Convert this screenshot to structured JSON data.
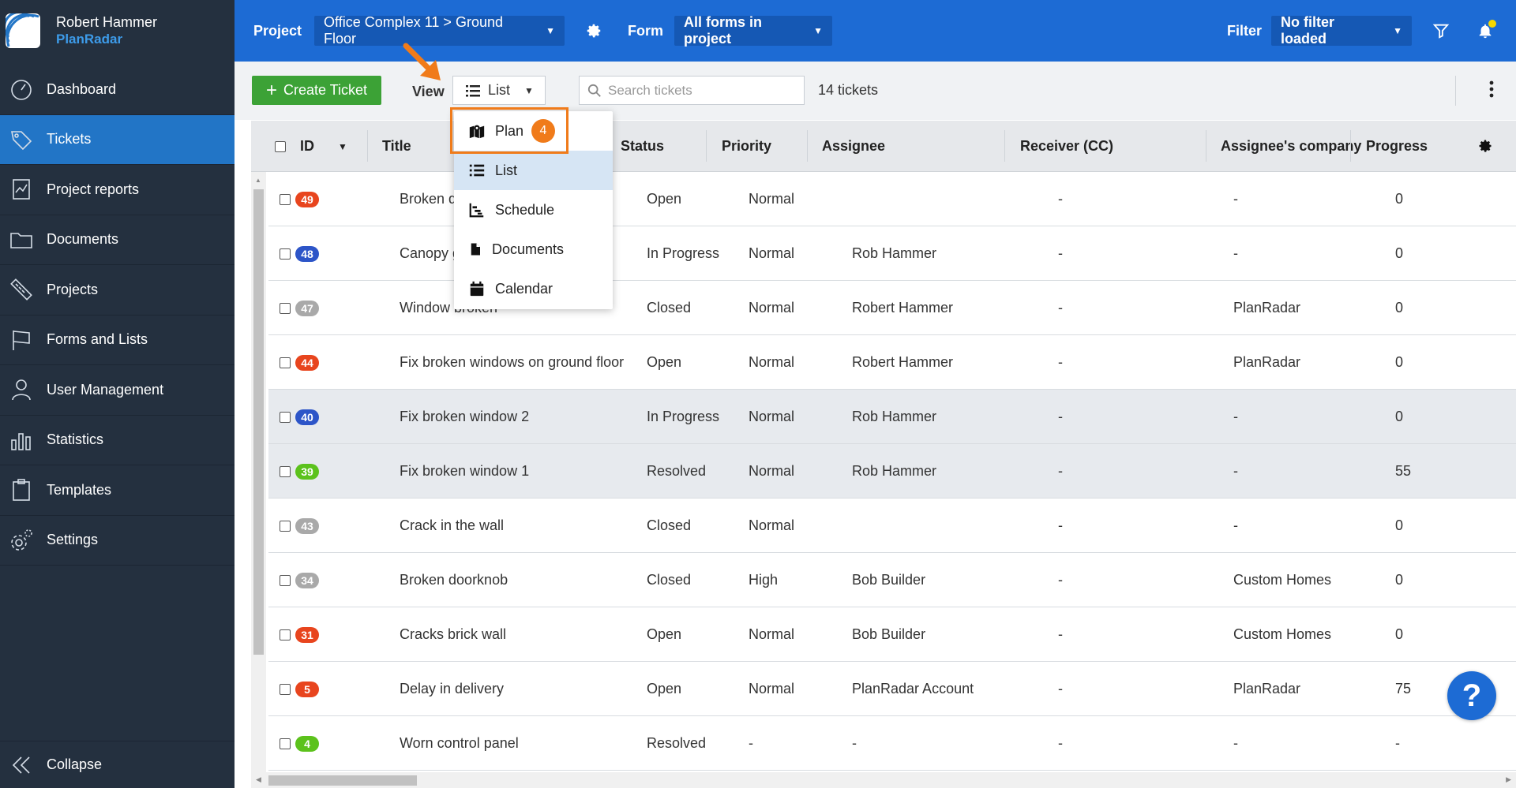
{
  "sidebar": {
    "user_name": "Robert Hammer",
    "brand": "PlanRadar",
    "items": [
      {
        "label": "Dashboard",
        "icon": "dashboard-icon",
        "active": false
      },
      {
        "label": "Tickets",
        "icon": "ticket-icon",
        "active": true
      },
      {
        "label": "Project reports",
        "icon": "report-icon",
        "active": false
      },
      {
        "label": "Documents",
        "icon": "folder-icon",
        "active": false
      },
      {
        "label": "Projects",
        "icon": "ruler-icon",
        "active": false
      },
      {
        "label": "Forms and Lists",
        "icon": "flag-icon",
        "active": false
      },
      {
        "label": "User Management",
        "icon": "user-icon",
        "active": false
      },
      {
        "label": "Statistics",
        "icon": "statistics-icon",
        "active": false
      },
      {
        "label": "Templates",
        "icon": "clipboard-icon",
        "active": false
      },
      {
        "label": "Settings",
        "icon": "gear-icon",
        "active": false
      }
    ],
    "collapse_label": "Collapse"
  },
  "topbar": {
    "project_label": "Project",
    "project_value": "Office Complex 11 > Ground Floor",
    "form_label": "Form",
    "form_value": "All forms in project",
    "filter_label": "Filter",
    "filter_value": "No filter loaded"
  },
  "toolbar": {
    "create_label": "Create Ticket",
    "view_label": "View",
    "view_value": "List",
    "search_placeholder": "Search tickets",
    "ticket_count": "14 tickets"
  },
  "view_menu": {
    "items": [
      {
        "label": "Plan",
        "icon": "map-icon"
      },
      {
        "label": "List",
        "icon": "list-icon"
      },
      {
        "label": "Schedule",
        "icon": "schedule-icon"
      },
      {
        "label": "Documents",
        "icon": "document-icon"
      },
      {
        "label": "Calendar",
        "icon": "calendar-icon"
      }
    ],
    "selected": "List",
    "highlight_badge": "4"
  },
  "table": {
    "columns": [
      "ID",
      "Title",
      "Status",
      "Priority",
      "Assignee",
      "Receiver (CC)",
      "Assignee's company",
      "Progress"
    ],
    "rows": [
      {
        "id": "49",
        "color": "#e8451e",
        "title": "Broken door",
        "status": "Open",
        "priority": "Normal",
        "assignee": "",
        "receiver": "-",
        "company": "-",
        "progress": "0",
        "highlight": false
      },
      {
        "id": "48",
        "color": "#2d55c8",
        "title": "Canopy girder",
        "status": "In Progress",
        "priority": "Normal",
        "assignee": "Rob Hammer",
        "receiver": "-",
        "company": "-",
        "progress": "0",
        "highlight": false
      },
      {
        "id": "47",
        "color": "#a9a9a9",
        "title": "Window broken",
        "status": "Closed",
        "priority": "Normal",
        "assignee": "Robert Hammer",
        "receiver": "-",
        "company": "PlanRadar",
        "progress": "0",
        "highlight": false
      },
      {
        "id": "44",
        "color": "#e8451e",
        "title": "Fix broken windows on ground floor",
        "status": "Open",
        "priority": "Normal",
        "assignee": "Robert Hammer",
        "receiver": "-",
        "company": "PlanRadar",
        "progress": "0",
        "highlight": false
      },
      {
        "id": "40",
        "color": "#2d55c8",
        "title": "Fix broken window 2",
        "status": "In Progress",
        "priority": "Normal",
        "assignee": "Rob Hammer",
        "receiver": "-",
        "company": "-",
        "progress": "0",
        "highlight": true
      },
      {
        "id": "39",
        "color": "#5cc21c",
        "title": "Fix broken window 1",
        "status": "Resolved",
        "priority": "Normal",
        "assignee": "Rob Hammer",
        "receiver": "-",
        "company": "-",
        "progress": "55",
        "highlight": true
      },
      {
        "id": "43",
        "color": "#a9a9a9",
        "title": "Crack in the wall",
        "status": "Closed",
        "priority": "Normal",
        "assignee": "",
        "receiver": "-",
        "company": "-",
        "progress": "0",
        "highlight": false
      },
      {
        "id": "34",
        "color": "#a9a9a9",
        "title": "Broken doorknob",
        "status": "Closed",
        "priority": "High",
        "assignee": "Bob Builder",
        "receiver": "-",
        "company": "Custom Homes",
        "progress": "0",
        "highlight": false
      },
      {
        "id": "31",
        "color": "#e8451e",
        "title": "Cracks brick wall",
        "status": "Open",
        "priority": "Normal",
        "assignee": "Bob Builder",
        "receiver": "-",
        "company": "Custom Homes",
        "progress": "0",
        "highlight": false
      },
      {
        "id": "5",
        "color": "#e8451e",
        "title": "Delay in delivery",
        "status": "Open",
        "priority": "Normal",
        "assignee": "PlanRadar Account",
        "receiver": "-",
        "company": "PlanRadar",
        "progress": "75",
        "highlight": false
      },
      {
        "id": "4",
        "color": "#5cc21c",
        "title": "Worn control panel",
        "status": "Resolved",
        "priority": "-",
        "assignee": "-",
        "receiver": "-",
        "company": "-",
        "progress": "-",
        "highlight": false
      }
    ]
  },
  "help_label": "?"
}
